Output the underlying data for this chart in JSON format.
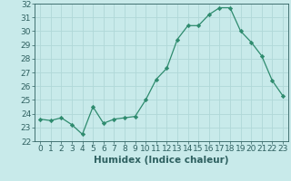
{
  "x": [
    0,
    1,
    2,
    3,
    4,
    5,
    6,
    7,
    8,
    9,
    10,
    11,
    12,
    13,
    14,
    15,
    16,
    17,
    18,
    19,
    20,
    21,
    22,
    23
  ],
  "y": [
    23.6,
    23.5,
    23.7,
    23.2,
    22.5,
    24.5,
    23.3,
    23.6,
    23.7,
    23.8,
    25.0,
    26.5,
    27.3,
    29.4,
    30.4,
    30.4,
    31.2,
    31.7,
    31.7,
    30.0,
    29.2,
    28.2,
    26.4,
    25.3
  ],
  "line_color": "#2e8b6e",
  "marker": "D",
  "marker_size": 2.2,
  "bg_color": "#c8eaea",
  "grid_color": "#b0d8d8",
  "xlabel": "Humidex (Indice chaleur)",
  "ylim": [
    22,
    32
  ],
  "xlim": [
    -0.5,
    23.5
  ],
  "yticks": [
    22,
    23,
    24,
    25,
    26,
    27,
    28,
    29,
    30,
    31,
    32
  ],
  "xticks": [
    0,
    1,
    2,
    3,
    4,
    5,
    6,
    7,
    8,
    9,
    10,
    11,
    12,
    13,
    14,
    15,
    16,
    17,
    18,
    19,
    20,
    21,
    22,
    23
  ],
  "xlabel_fontsize": 7.5,
  "tick_fontsize": 6.5,
  "tick_color": "#2e6060",
  "line_width": 0.9
}
